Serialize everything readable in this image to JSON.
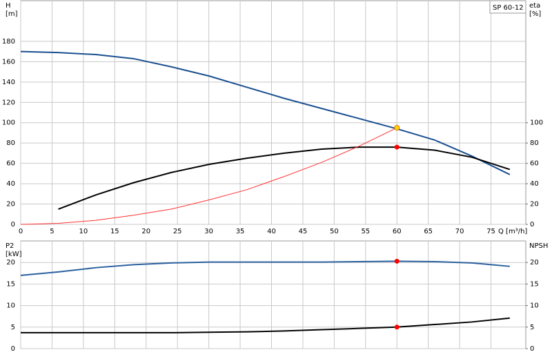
{
  "chart_data": [
    {
      "type": "line",
      "title": "SP 60-12",
      "x_label": "Q [m³/h]",
      "y_label": "H",
      "y_unit": "[m]",
      "y2_label": "eta",
      "y2_unit": "[%]",
      "xlim": [
        0,
        80
      ],
      "xticks": [
        0,
        5,
        10,
        15,
        20,
        25,
        30,
        35,
        40,
        45,
        50,
        55,
        60,
        65,
        70,
        75
      ],
      "ylim": [
        0,
        220
      ],
      "yticks": [
        0,
        20,
        40,
        60,
        80,
        100,
        120,
        140,
        160,
        180
      ],
      "y2lim": [
        0,
        220
      ],
      "y2ticks": [
        0,
        20,
        40,
        60,
        80,
        100
      ],
      "grid": true,
      "series": [
        {
          "color": "#1a4f8f",
          "x": [
            0,
            6,
            12,
            18,
            24,
            30,
            36,
            42,
            48,
            54,
            60,
            66,
            72,
            78
          ],
          "values": [
            170,
            169,
            167,
            163,
            155,
            146,
            135,
            124,
            114,
            104,
            94,
            83,
            67,
            49
          ]
        },
        {
          "color": "#000000",
          "axis": "y2",
          "x": [
            6,
            12,
            18,
            24,
            30,
            36,
            42,
            48,
            54,
            60,
            66,
            72,
            78
          ],
          "values": [
            15,
            29,
            41,
            51,
            59,
            65,
            70,
            74,
            76,
            76,
            73,
            66,
            54
          ]
        },
        {
          "color": "#ff3030",
          "x": [
            0,
            6,
            12,
            18,
            24,
            30,
            36,
            42,
            48,
            54,
            60
          ],
          "values": [
            0,
            1,
            4,
            9,
            15,
            24,
            34,
            47,
            61,
            77,
            95
          ]
        }
      ],
      "markers": [
        {
          "x": 60,
          "y": 95,
          "color": "#ffd700"
        },
        {
          "x": 60,
          "y": 76,
          "axis": "y2",
          "color": "#ff0000"
        }
      ]
    },
    {
      "type": "line",
      "y_label": "P2",
      "y_unit": "[kW]",
      "y2_label": "NPSH",
      "xlim": [
        0,
        80
      ],
      "xticks": [
        0,
        5,
        10,
        15,
        20,
        25,
        30,
        35,
        40,
        45,
        50,
        55,
        60,
        65,
        70,
        75
      ],
      "ylim": [
        0,
        25
      ],
      "yticks": [
        0,
        5,
        10,
        15,
        20
      ],
      "y2lim": [
        0,
        25
      ],
      "y2ticks": [
        0,
        5,
        10,
        15,
        20
      ],
      "grid": true,
      "series": [
        {
          "color": "#2a5f9f",
          "x": [
            0,
            6,
            12,
            18,
            24,
            30,
            36,
            42,
            48,
            54,
            60,
            66,
            72,
            78
          ],
          "values": [
            17,
            17.8,
            18.8,
            19.5,
            19.9,
            20.1,
            20.1,
            20.1,
            20.1,
            20.2,
            20.3,
            20.2,
            19.9,
            19.1
          ]
        },
        {
          "color": "#000000",
          "axis": "y2",
          "x": [
            0,
            6,
            12,
            18,
            24,
            30,
            36,
            42,
            48,
            54,
            60,
            66,
            72,
            78
          ],
          "values": [
            3.7,
            3.7,
            3.7,
            3.7,
            3.7,
            3.8,
            3.9,
            4.1,
            4.4,
            4.7,
            5.0,
            5.6,
            6.2,
            7.1
          ]
        }
      ],
      "markers": [
        {
          "x": 60,
          "y": 20.3,
          "color": "#ff0000"
        },
        {
          "x": 60,
          "y": 5,
          "axis": "y2",
          "color": "#ff0000"
        }
      ]
    }
  ]
}
